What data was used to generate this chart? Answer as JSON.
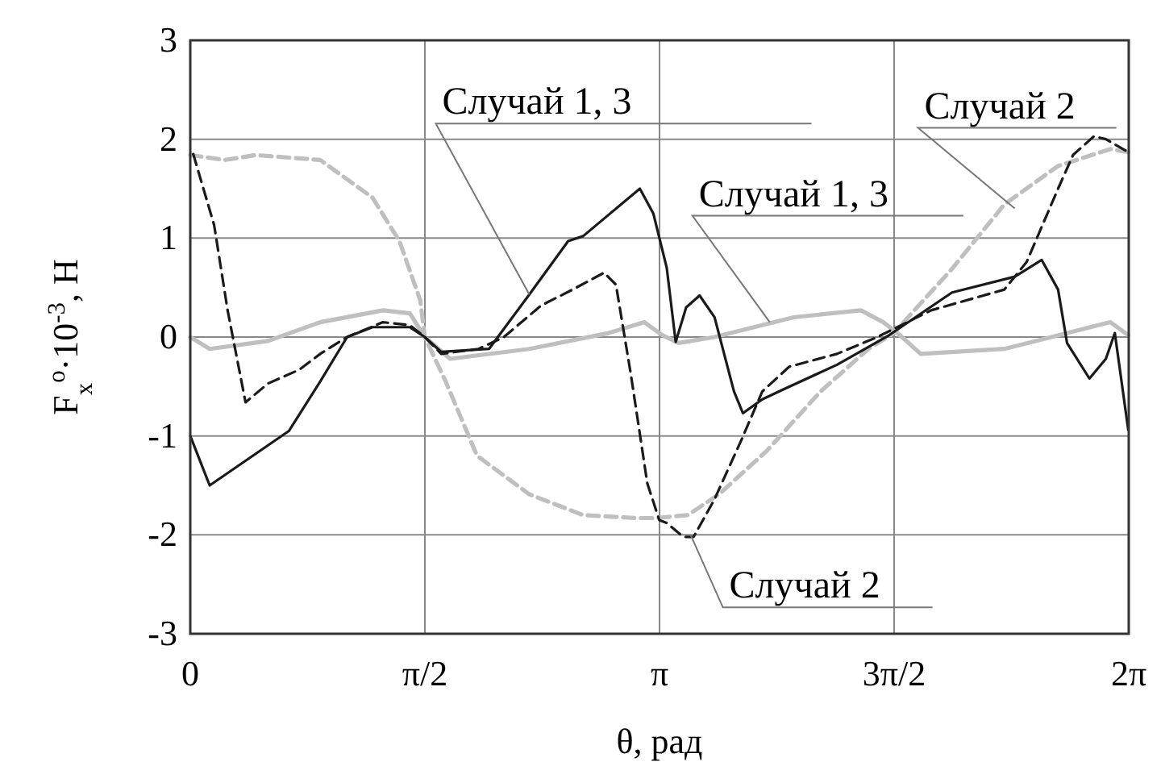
{
  "chart_data": {
    "type": "line",
    "xlabel": "θ, рад",
    "ylabel": "F$_{x}$$^{o}$·10$^{-3}$, Н",
    "xlim": [
      0,
      6.2832
    ],
    "xticks": [
      0,
      {
        "value": 1.5708,
        "label": "π/2"
      },
      {
        "value": 3.1416,
        "label": "π"
      },
      {
        "value": 4.7124,
        "label": "3π/2"
      },
      {
        "value": 6.2832,
        "label": "2π"
      }
    ],
    "ylim": [
      -3,
      3
    ],
    "yticks": [
      -3,
      -2,
      -1,
      0,
      1,
      2,
      3
    ],
    "grid": true,
    "marker": "none",
    "series": [
      {
        "color": "#bfbfbf",
        "line_style": "dashed",
        "x": [
          0,
          0.23,
          0.44,
          0.87,
          1.22,
          1.4,
          1.54,
          1.57,
          1.71,
          1.92,
          2.27,
          2.63,
          2.98,
          3.12,
          3.33,
          3.54,
          3.86,
          4.22,
          4.54,
          4.71,
          5.1,
          5.45,
          5.81,
          6.16,
          6.28
        ],
        "values": [
          1.84,
          1.79,
          1.84,
          1.79,
          1.41,
          0.97,
          0.37,
          0,
          -0.45,
          -1.2,
          -1.59,
          -1.8,
          -1.83,
          -1.83,
          -1.8,
          -1.59,
          -1.15,
          -0.55,
          -0.12,
          0.04,
          0.69,
          1.34,
          1.73,
          1.9,
          1.87
        ]
      },
      {
        "color": "#bfbfbf",
        "line_style": "solid",
        "x": [
          0,
          0.13,
          0.52,
          0.87,
          1.29,
          1.47,
          1.57,
          1.74,
          2.27,
          2.8,
          3.04,
          3.16,
          3.27,
          3.51,
          4.04,
          4.49,
          4.64,
          4.75,
          4.89,
          5.45,
          6.16,
          6.28
        ],
        "values": [
          0,
          -0.12,
          -0.04,
          0.15,
          0.27,
          0.24,
          0,
          -0.22,
          -0.12,
          0.04,
          0.15,
          0.02,
          -0.06,
          0,
          0.2,
          0.27,
          0.15,
          0.02,
          -0.17,
          -0.12,
          0.15,
          0.02
        ]
      },
      {
        "color": "#1a1a1a",
        "line_style": "dashed",
        "x": [
          0.02,
          0.16,
          0.25,
          0.37,
          0.52,
          0.73,
          0.87,
          1.05,
          1.29,
          1.47,
          1.57,
          1.68,
          1.93,
          2.1,
          2.35,
          2.56,
          2.77,
          2.85,
          2.95,
          3.06,
          3.14,
          3.19,
          3.3,
          3.37,
          3.51,
          3.69,
          3.83,
          4.01,
          4.33,
          4.6,
          4.96,
          5.45,
          5.6,
          5.81,
          5.91,
          6.05,
          6.13,
          6.28
        ],
        "values": [
          1.85,
          1.13,
          0.27,
          -0.66,
          -0.47,
          -0.33,
          -0.17,
          0,
          0.15,
          0.12,
          0,
          -0.17,
          -0.12,
          0,
          0.32,
          0.48,
          0.65,
          0.53,
          -0.38,
          -1.48,
          -1.85,
          -1.88,
          -2.02,
          -2.02,
          -1.64,
          -1.04,
          -0.55,
          -0.3,
          -0.17,
          0,
          0.27,
          0.48,
          0.76,
          1.5,
          1.84,
          2.03,
          2,
          1.87
        ]
      },
      {
        "color": "#1a1a1a",
        "line_style": "solid",
        "x": [
          0,
          0.13,
          0.66,
          0.87,
          1.05,
          1.22,
          1.47,
          1.57,
          1.68,
          2,
          2.27,
          2.53,
          2.63,
          3.01,
          3.1,
          3.19,
          3.25,
          3.32,
          3.41,
          3.51,
          3.64,
          3.7,
          3.83,
          3.97,
          4.33,
          4.68,
          5.1,
          5.52,
          5.7,
          5.81,
          5.87,
          6.02,
          6.13,
          6.19,
          6.28
        ],
        "values": [
          -1,
          -1.5,
          -0.95,
          -0.45,
          0,
          0.1,
          0.1,
          0,
          -0.15,
          -0.12,
          0.43,
          0.97,
          1.02,
          1.5,
          1.25,
          0.7,
          -0.05,
          0.3,
          0.42,
          0.2,
          -0.55,
          -0.77,
          -0.63,
          -0.53,
          -0.28,
          0.02,
          0.45,
          0.61,
          0.78,
          0.48,
          -0.06,
          -0.42,
          -0.22,
          0.04,
          -0.94
        ]
      }
    ],
    "annotations": [
      {
        "text": "Случай 1, 3",
        "x": 2.27,
        "y": 0.43
      },
      {
        "text": "Случай 1, 3",
        "x": 3.88,
        "y": 0.15
      },
      {
        "text": "Случай 2",
        "x": 5.52,
        "y": 1.3
      },
      {
        "text": "Случай 2",
        "x": 3.35,
        "y": -2.0
      }
    ]
  }
}
